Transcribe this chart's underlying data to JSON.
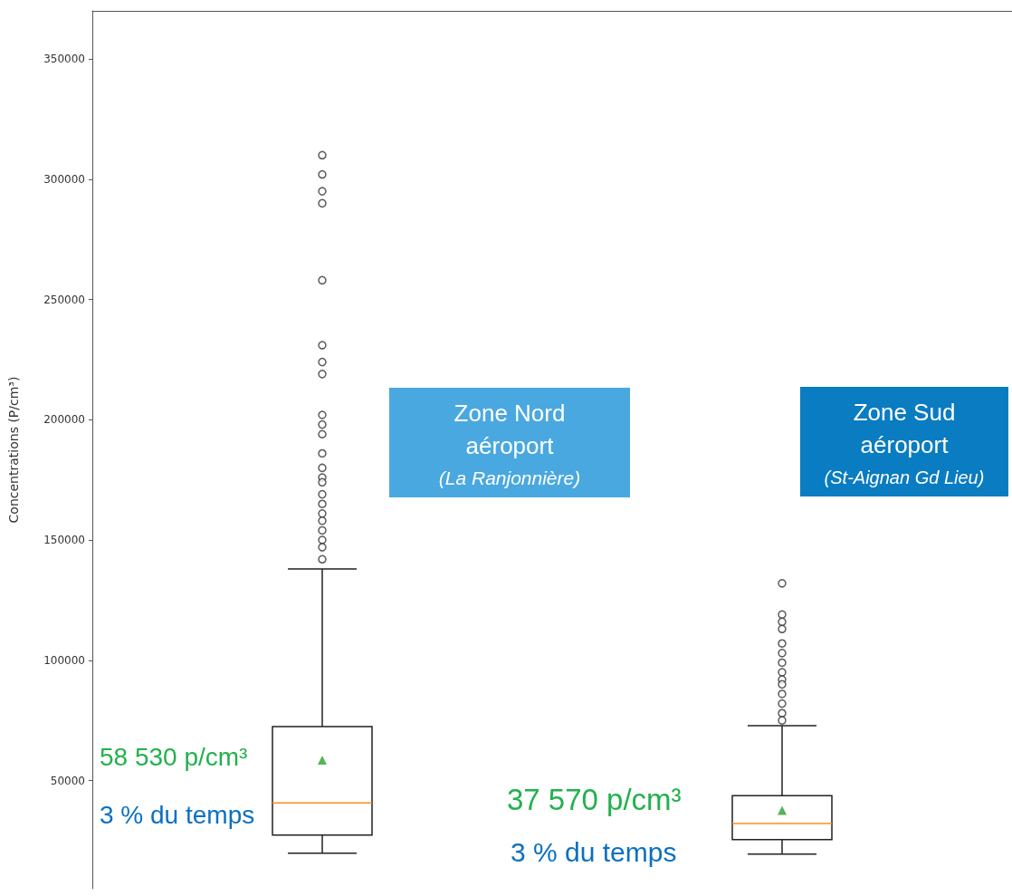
{
  "chart_data": {
    "type": "box",
    "ylabel": "Concentrations (P/cm³)",
    "categories": [
      null,
      null
    ],
    "boxes": [
      {
        "low": 19800,
        "q1": 27300,
        "median": 40700,
        "q3": 72400,
        "high": 138000,
        "mean": 58530,
        "outliers": [
          310000,
          302000,
          295000,
          290000,
          258000,
          231000,
          224000,
          219000,
          202000,
          198000,
          194000,
          186000,
          180000,
          176000,
          174000,
          169000,
          165000,
          161000,
          158000,
          154000,
          150000,
          147000,
          142000
        ]
      },
      {
        "low": 19400,
        "q1": 25400,
        "median": 32100,
        "q3": 43700,
        "high": 72800,
        "mean": 37570,
        "outliers": [
          132000,
          119000,
          116000,
          113000,
          107000,
          103000,
          99000,
          95000,
          92000,
          90000,
          86000,
          82000,
          78000,
          75000
        ]
      }
    ],
    "ylim": [
      5000,
      370000
    ],
    "yticks": [
      50000,
      100000,
      150000,
      200000,
      250000,
      300000,
      350000
    ],
    "grid": false,
    "annotations": [
      "Zone Nord aéroport",
      "(La Ranjonnière)",
      "Zone Sud aéroport",
      "(St-Aignan Gd Lieu)",
      "58 530 p/cm³",
      "3 % du temps",
      "37 570 p/cm³",
      "3 % du temps"
    ]
  }
}
